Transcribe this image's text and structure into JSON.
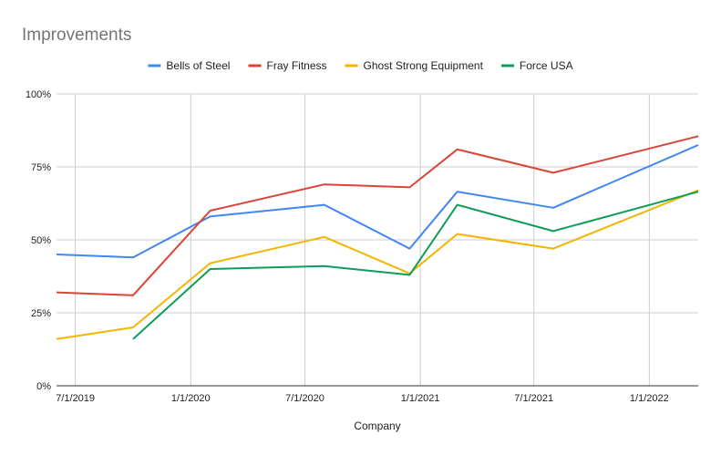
{
  "chart_data": {
    "type": "line",
    "title": "Improvements",
    "xlabel": "Company",
    "ylabel": "",
    "ylim": [
      0,
      1
    ],
    "y_ticks": [
      "0%",
      "25%",
      "50%",
      "75%",
      "100%"
    ],
    "x_ticks": [
      {
        "date": "2019-07-01",
        "label": "7/1/2019"
      },
      {
        "date": "2020-01-01",
        "label": "1/1/2020"
      },
      {
        "date": "2020-07-01",
        "label": "7/1/2020"
      },
      {
        "date": "2021-01-01",
        "label": "1/1/2021"
      },
      {
        "date": "2021-07-01",
        "label": "7/1/2021"
      },
      {
        "date": "2022-01-01",
        "label": "1/1/2022"
      }
    ],
    "xlim": [
      "2019-06-01",
      "2022-03-20"
    ],
    "legend_position": "top",
    "grid": true,
    "series": [
      {
        "name": "Bells of Steel",
        "color": "#4285F4",
        "points": [
          [
            "2019-06-01",
            0.45
          ],
          [
            "2019-10-01",
            0.44
          ],
          [
            "2020-02-01",
            0.58
          ],
          [
            "2020-08-01",
            0.62
          ],
          [
            "2020-12-15",
            0.47
          ],
          [
            "2021-03-01",
            0.665
          ],
          [
            "2021-08-01",
            0.61
          ],
          [
            "2022-03-20",
            0.825
          ]
        ]
      },
      {
        "name": "Fray Fitness",
        "color": "#DB4437",
        "points": [
          [
            "2019-06-01",
            0.32
          ],
          [
            "2019-10-01",
            0.31
          ],
          [
            "2020-02-01",
            0.6
          ],
          [
            "2020-08-01",
            0.69
          ],
          [
            "2020-12-15",
            0.68
          ],
          [
            "2021-03-01",
            0.81
          ],
          [
            "2021-08-01",
            0.73
          ],
          [
            "2022-03-20",
            0.855
          ]
        ]
      },
      {
        "name": "Ghost Strong Equipment",
        "color": "#F4B400",
        "points": [
          [
            "2019-06-01",
            0.16
          ],
          [
            "2019-10-01",
            0.2
          ],
          [
            "2020-02-01",
            0.42
          ],
          [
            "2020-08-01",
            0.51
          ],
          [
            "2020-12-15",
            0.385
          ],
          [
            "2021-03-01",
            0.52
          ],
          [
            "2021-08-01",
            0.47
          ],
          [
            "2022-03-20",
            0.67
          ]
        ]
      },
      {
        "name": "Force USA",
        "color": "#0F9D58",
        "points": [
          [
            "2019-10-01",
            0.16
          ],
          [
            "2020-02-01",
            0.4
          ],
          [
            "2020-08-01",
            0.41
          ],
          [
            "2020-12-15",
            0.38
          ],
          [
            "2021-03-01",
            0.62
          ],
          [
            "2021-08-01",
            0.53
          ],
          [
            "2022-03-20",
            0.665
          ]
        ]
      }
    ]
  }
}
